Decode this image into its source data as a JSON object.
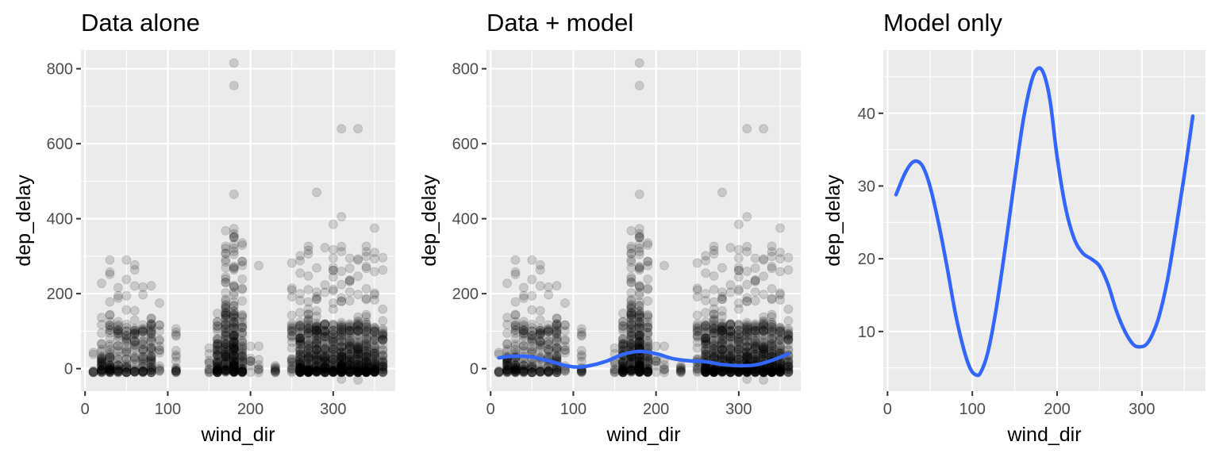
{
  "chart_data": [
    {
      "type": "scatter",
      "title": "Data alone",
      "xlabel": "wind_dir",
      "ylabel": "dep_delay",
      "xlim": [
        -5,
        375
      ],
      "ylim": [
        -60,
        850
      ],
      "xticks": [
        0,
        100,
        200,
        300
      ],
      "yticks": [
        0,
        200,
        400,
        600,
        800
      ],
      "grid": true,
      "point_color": "#000000",
      "point_alpha": 0.15,
      "bands": [
        {
          "x": [
            10,
            30
          ],
          "y": [
            -10,
            60
          ],
          "n": 40
        },
        {
          "x": [
            20,
            90
          ],
          "y": [
            -10,
            120
          ],
          "n": 220
        },
        {
          "x": [
            20,
            90
          ],
          "y": [
            100,
            290
          ],
          "n": 40
        },
        {
          "x": [
            110,
            110
          ],
          "y": [
            -10,
            140
          ],
          "n": 18
        },
        {
          "x": [
            150,
            165
          ],
          "y": [
            -10,
            60
          ],
          "n": 20
        },
        {
          "x": [
            160,
            190
          ],
          "y": [
            -10,
            150
          ],
          "n": 260
        },
        {
          "x": [
            165,
            190
          ],
          "y": [
            140,
            380
          ],
          "n": 60
        },
        {
          "x": [
            195,
            210
          ],
          "y": [
            -10,
            60
          ],
          "n": 14
        },
        {
          "x": [
            230,
            230
          ],
          "y": [
            -10,
            10
          ],
          "n": 10
        },
        {
          "x": [
            250,
            360
          ],
          "y": [
            -10,
            120
          ],
          "n": 700
        },
        {
          "x": [
            250,
            360
          ],
          "y": [
            100,
            330
          ],
          "n": 130
        }
      ],
      "points": [
        {
          "x": 180,
          "y": 815
        },
        {
          "x": 180,
          "y": 755
        },
        {
          "x": 180,
          "y": 465
        },
        {
          "x": 280,
          "y": 470
        },
        {
          "x": 310,
          "y": 640
        },
        {
          "x": 330,
          "y": 640
        },
        {
          "x": 310,
          "y": 405
        },
        {
          "x": 300,
          "y": 385
        },
        {
          "x": 350,
          "y": 375
        },
        {
          "x": 30,
          "y": 290
        },
        {
          "x": 50,
          "y": 290
        },
        {
          "x": 210,
          "y": 275
        },
        {
          "x": 90,
          "y": 175
        },
        {
          "x": 330,
          "y": -30
        },
        {
          "x": 310,
          "y": -28
        }
      ]
    },
    {
      "type": "scatter",
      "title": "Data + model",
      "xlabel": "wind_dir",
      "ylabel": "dep_delay",
      "xlim": [
        -5,
        375
      ],
      "ylim": [
        -60,
        850
      ],
      "xticks": [
        0,
        100,
        200,
        300
      ],
      "yticks": [
        0,
        200,
        400,
        600,
        800
      ],
      "grid": true,
      "line_color": "#3366FF",
      "model": {
        "x": [
          10,
          20,
          35,
          50,
          70,
          90,
          105,
          120,
          140,
          160,
          180,
          200,
          220,
          240,
          260,
          280,
          300,
          320,
          340,
          360
        ],
        "y": [
          28.8,
          32,
          33.4,
          31,
          21,
          8.5,
          4.2,
          8,
          20,
          38,
          46,
          40,
          27,
          21,
          18.5,
          11,
          8,
          10,
          22,
          39.6
        ]
      }
    },
    {
      "type": "line",
      "title": "Model only",
      "xlabel": "wind_dir",
      "ylabel": "dep_delay",
      "xlim": [
        -5,
        375
      ],
      "ylim": [
        1.8,
        48.7
      ],
      "xticks": [
        0,
        100,
        200,
        300
      ],
      "yticks": [
        10,
        20,
        30,
        40
      ],
      "grid": true,
      "line_color": "#3366FF",
      "series": [
        {
          "x": [
            10,
            20,
            28,
            35,
            42,
            50,
            60,
            70,
            80,
            90,
            98,
            105,
            110,
            118,
            128,
            140,
            150,
            160,
            170,
            178,
            185,
            192,
            200,
            210,
            220,
            230,
            240,
            250,
            260,
            270,
            280,
            290,
            298,
            305,
            312,
            320,
            330,
            340,
            350,
            360
          ],
          "y": [
            28.8,
            31.6,
            33.1,
            33.4,
            32.6,
            30,
            25,
            19,
            12.5,
            7.5,
            4.8,
            4,
            4.4,
            7,
            13,
            22.5,
            31,
            39,
            44.5,
            46.2,
            45.2,
            41.5,
            34,
            27,
            22.8,
            20.8,
            20,
            19,
            16.5,
            12.8,
            10,
            8.2,
            7.9,
            8.2,
            9.5,
            12,
            17,
            24,
            31.5,
            39.6
          ]
        }
      ]
    }
  ]
}
